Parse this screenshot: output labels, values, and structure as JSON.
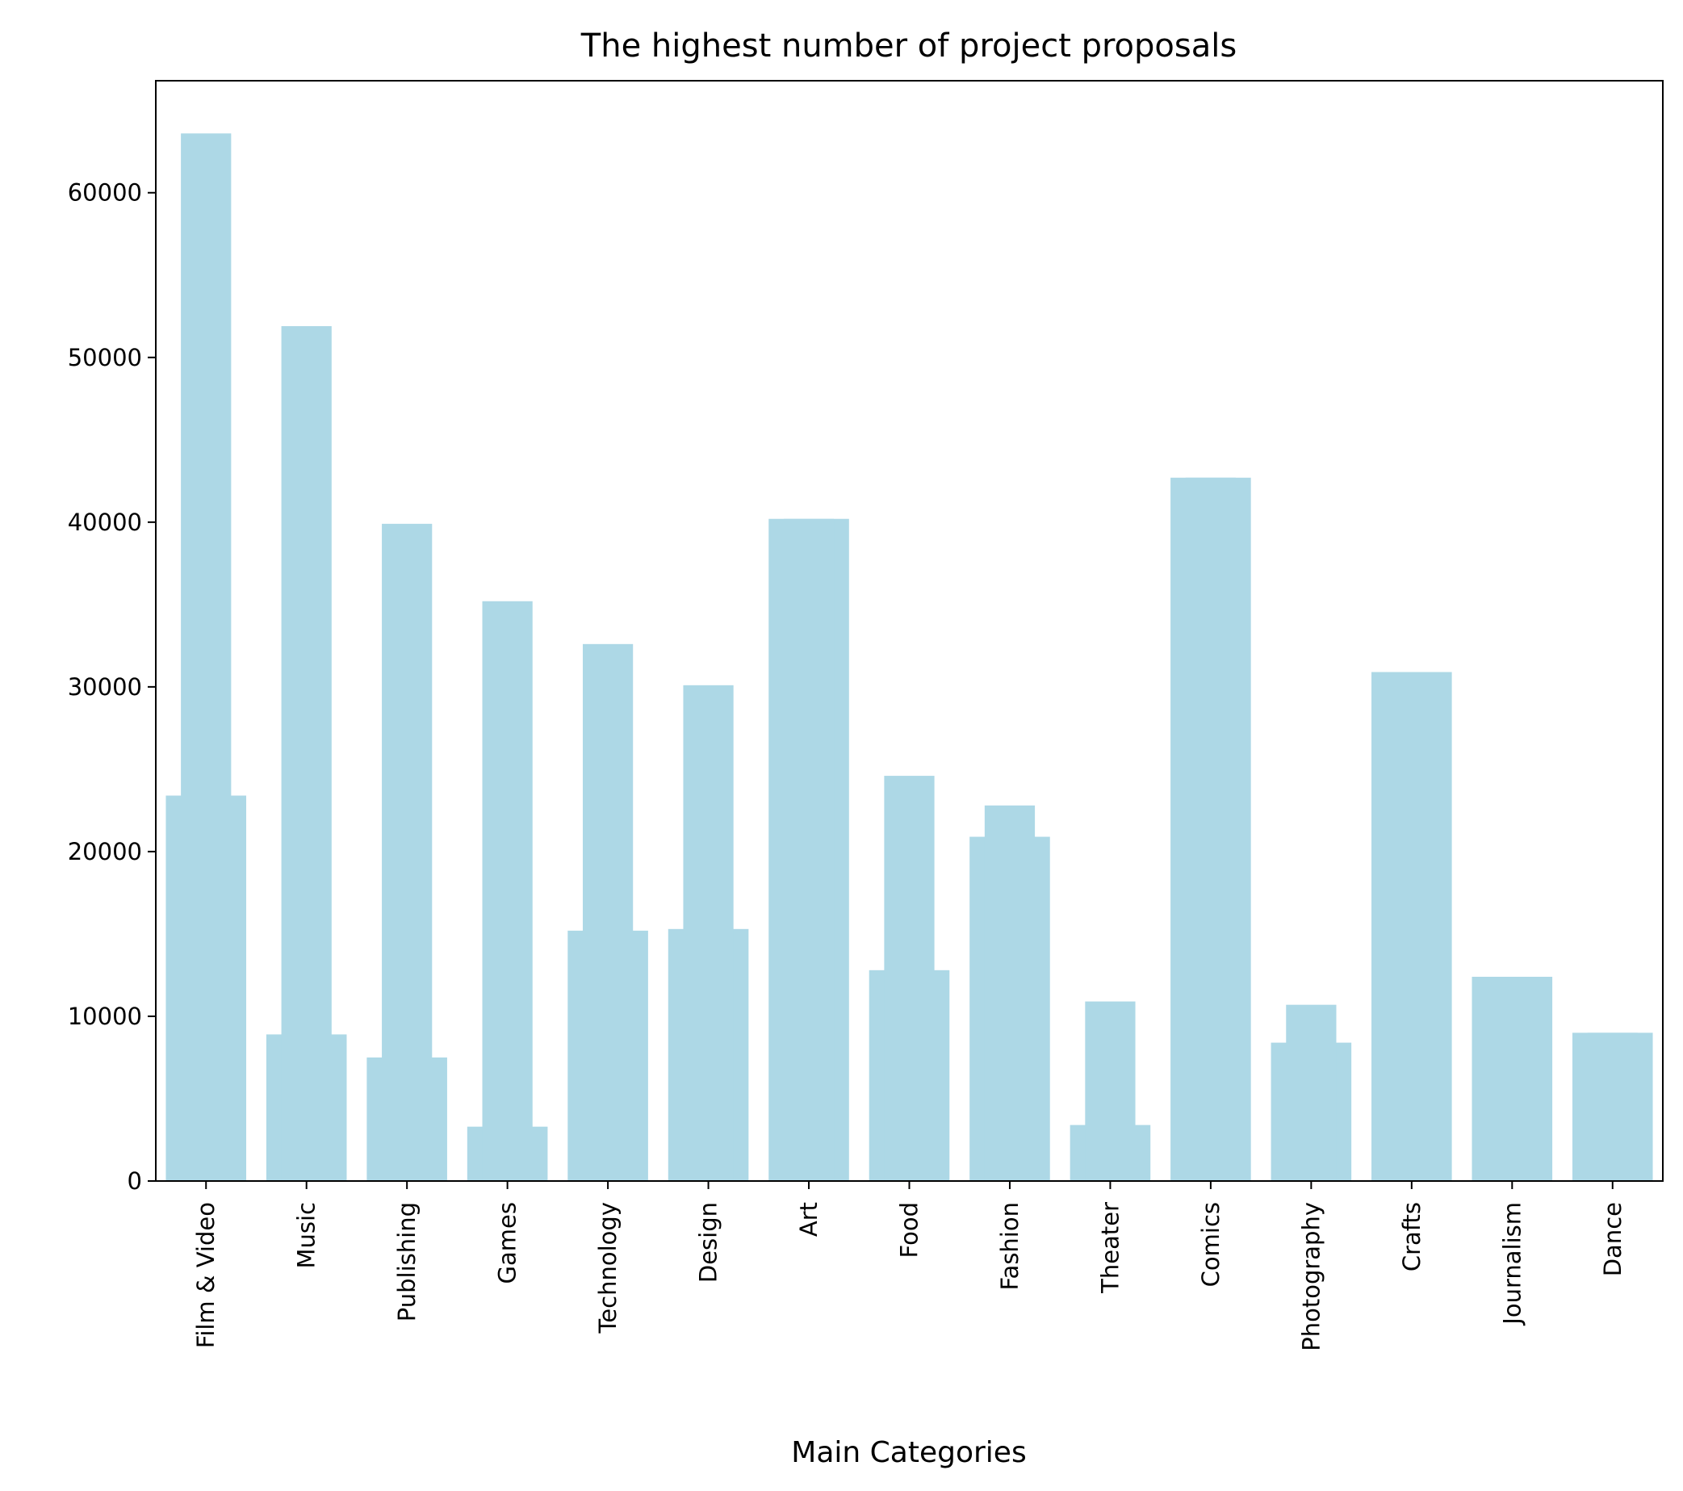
{
  "chart_data": {
    "type": "bar",
    "title": "The highest number of project proposals",
    "xlabel": "Main Categories",
    "ylabel": "",
    "ylim": [
      0,
      66800
    ],
    "yticks": [
      0,
      10000,
      20000,
      30000,
      40000,
      50000,
      60000
    ],
    "categories": [
      "Film & Video",
      "Music",
      "Publishing",
      "Games",
      "Technology",
      "Design",
      "Art",
      "Food",
      "Fashion",
      "Theater",
      "Comics",
      "Photography",
      "Crafts",
      "Journalism",
      "Dance"
    ],
    "series": [
      {
        "values": [
          23400,
          8900,
          7500,
          3300,
          15200,
          15300,
          40200,
          12800,
          20900,
          3400,
          42700,
          8400,
          30900,
          12400,
          9000
        ]
      },
      {
        "values": [
          63600,
          51900,
          39900,
          35200,
          32600,
          30100,
          40200,
          24600,
          22800,
          10900,
          42700,
          10700,
          30900,
          12400,
          9000
        ]
      }
    ],
    "colors": {
      "bar": "#add8e6"
    },
    "grid": false,
    "legend": "none"
  }
}
